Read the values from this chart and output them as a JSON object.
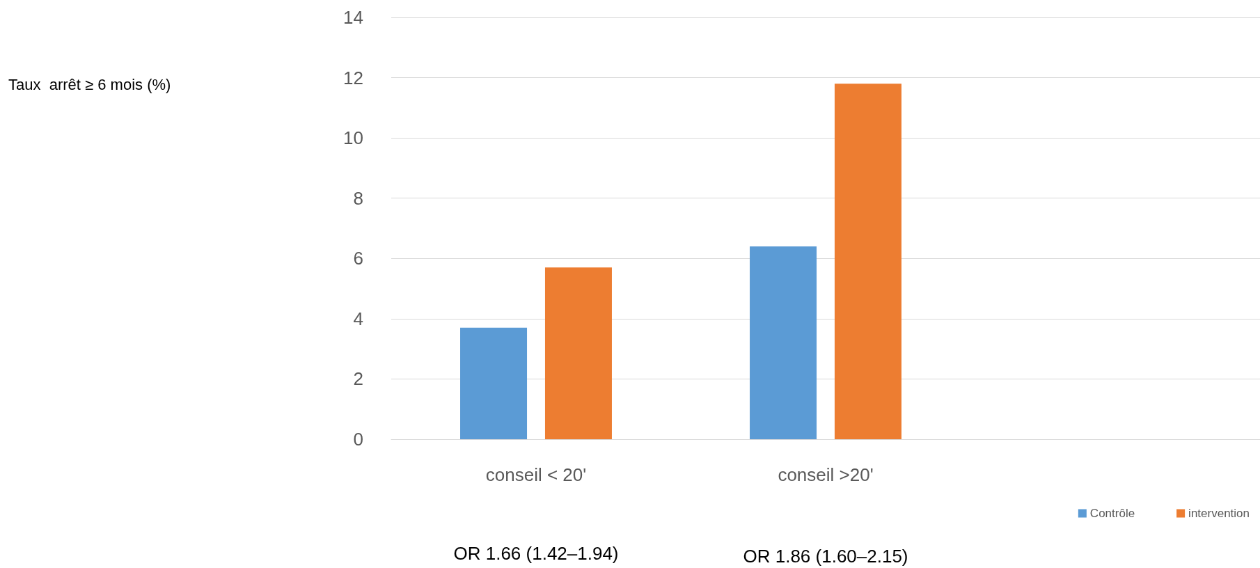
{
  "chart_data": {
    "type": "bar",
    "categories": [
      "conseil < 20'",
      "conseil >20'",
      null
    ],
    "series": [
      {
        "name": "Contrôle",
        "color": "#5b9bd5",
        "values": [
          3.7,
          6.4,
          null
        ]
      },
      {
        "name": "intervention",
        "color": "#ed7d31",
        "values": [
          5.7,
          11.8,
          null
        ]
      }
    ],
    "ylim": [
      0,
      14
    ],
    "yticks": [
      0,
      2,
      4,
      6,
      8,
      10,
      12,
      14
    ],
    "grid": "y",
    "legend": "bottom right",
    "annotations": [
      "Taux  arrêt ≥ 6 mois (%)",
      "OR 1.66 (1.42–1.94)",
      "OR 1.86 (1.60–2.15)"
    ]
  }
}
